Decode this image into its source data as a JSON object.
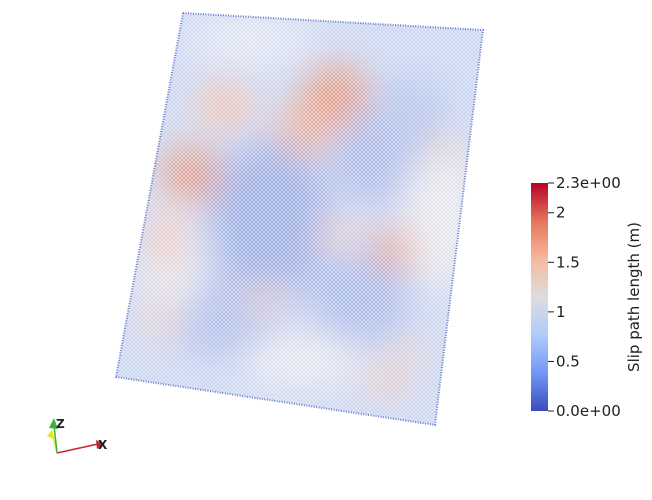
{
  "colorbar": {
    "title": "Slip path length (m)",
    "min_value": 0.0,
    "max_value": 2.3,
    "min_label": "0.0e+00",
    "max_label": "2.3e+00",
    "ticks": [
      {
        "value": 2.0,
        "label": "2"
      },
      {
        "value": 1.5,
        "label": "1.5"
      },
      {
        "value": 1.0,
        "label": "1"
      },
      {
        "value": 0.5,
        "label": "0.5"
      }
    ],
    "colormap": [
      "#3b4cc0",
      "#7396f5",
      "#b0cbfc",
      "#dddddd",
      "#f6b99d",
      "#e7745b",
      "#b40426"
    ]
  },
  "orientation_axes": {
    "x_label": "X",
    "z_label": "Z",
    "x_color": "#c2262e",
    "y_color": "#e5e52e",
    "z_color": "#3fb03f"
  }
}
